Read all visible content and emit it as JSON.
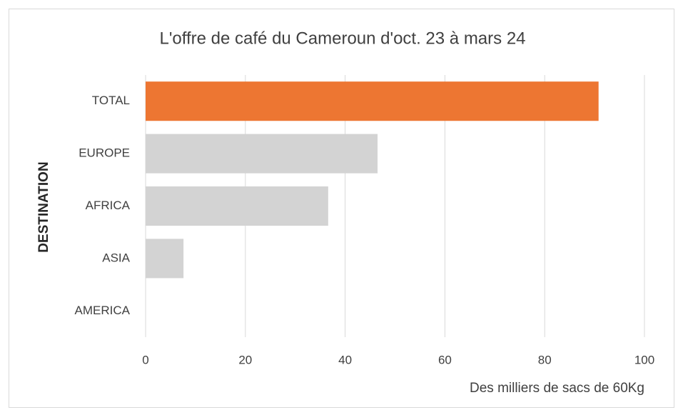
{
  "chart_data": {
    "type": "barh",
    "title": "L'offre de café du Cameroun d'oct. 23 à mars 24",
    "categories": [
      "TOTAL",
      "EUROPE",
      "AFRICA",
      "ASIA",
      "AMERICA"
    ],
    "values": [
      90.8,
      46.5,
      36.6,
      7.6,
      0
    ],
    "colors": [
      "#ed7632",
      "#d3d3d3",
      "#d3d3d3",
      "#d3d3d3",
      "#d3d3d3"
    ],
    "xlim": [
      0,
      100
    ],
    "xticks": [
      0,
      20,
      40,
      60,
      80,
      100
    ],
    "grid": true,
    "xlabel": "Des milliers de sacs de 60Kg",
    "ylabel": "DESTINATION"
  }
}
